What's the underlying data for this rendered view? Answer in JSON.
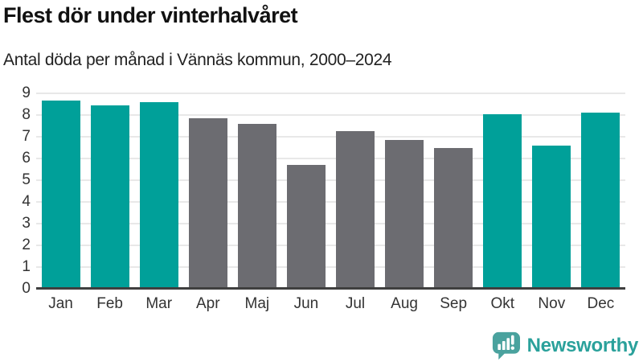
{
  "header": {
    "title": "Flest dör under vinterhalvåret",
    "subtitle": "Antal döda per månad i Vännäs kommun, 2000–2024"
  },
  "chart_data": {
    "type": "bar",
    "title": "Flest dör under vinterhalvåret",
    "subtitle": "Antal döda per månad i Vännäs kommun, 2000–2024",
    "categories": [
      "Jan",
      "Feb",
      "Mar",
      "Apr",
      "Maj",
      "Jun",
      "Jul",
      "Aug",
      "Sep",
      "Okt",
      "Nov",
      "Dec"
    ],
    "values": [
      8.65,
      8.45,
      8.6,
      7.85,
      7.6,
      5.7,
      7.25,
      6.85,
      6.5,
      8.05,
      6.6,
      8.1
    ],
    "groups": [
      "winter",
      "winter",
      "winter",
      "summer",
      "summer",
      "summer",
      "summer",
      "summer",
      "summer",
      "winter",
      "winter",
      "winter"
    ],
    "group_colors": {
      "winter": "#00a099",
      "summer": "#6c6c71"
    },
    "ylim": [
      0,
      9
    ],
    "yticks": [
      0,
      1,
      2,
      3,
      4,
      5,
      6,
      7,
      8,
      9
    ],
    "xlabel": "",
    "ylabel": "",
    "grid": "horizontal",
    "legend": "none"
  },
  "footer": {
    "brand": "Newsworthy",
    "brand_color": "#2aa19b",
    "logo_color": "#4aa29e",
    "logo_icon": "newsworthy-logo-icon"
  },
  "colors": {
    "background": "#ffffff",
    "gridline": "#e8e8e8",
    "axis_line": "#3f3f3f",
    "tick_label": "#333333",
    "title_text": "#111111",
    "subtitle_text": "#222222"
  }
}
